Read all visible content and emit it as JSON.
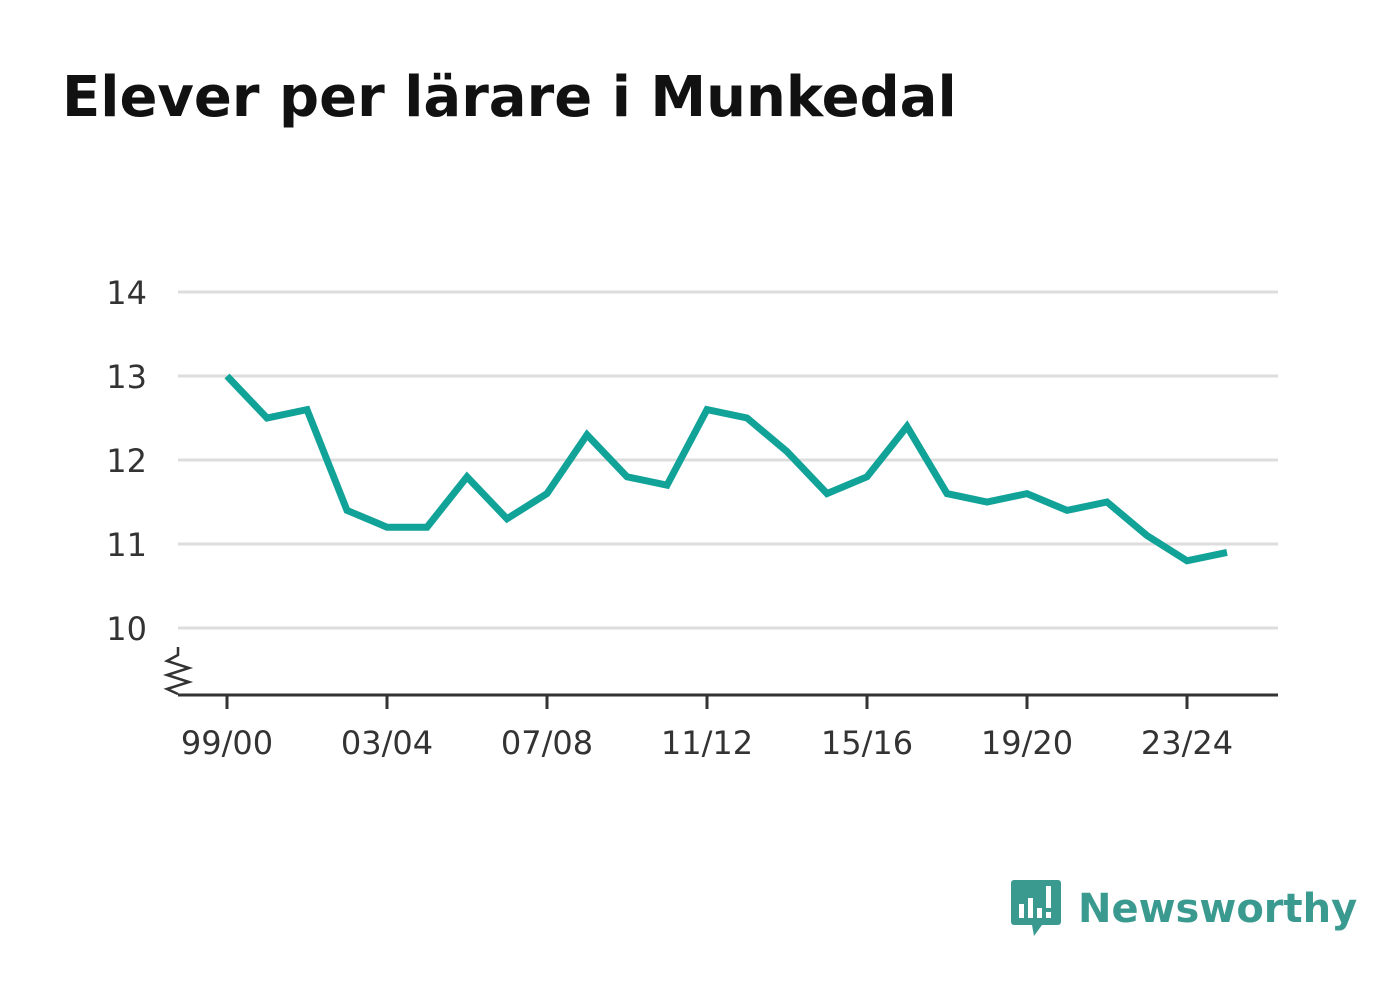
{
  "title": "Elever per lärare i Munkedal",
  "brand": {
    "name": "Newsworthy",
    "color": "#3a9a8f"
  },
  "colors": {
    "line": "#11a298",
    "grid": "#dddddd",
    "axis": "#333333"
  },
  "chart_data": {
    "type": "line",
    "title": "Elever per lärare i Munkedal",
    "xlabel": "",
    "ylabel": "",
    "ylim": [
      9.2,
      14
    ],
    "y_axis_break": true,
    "yticks": [
      10,
      11,
      12,
      13,
      14
    ],
    "grid": true,
    "x": [
      "99/00",
      "00/01",
      "01/02",
      "02/03",
      "03/04",
      "04/05",
      "05/06",
      "06/07",
      "07/08",
      "08/09",
      "09/10",
      "10/11",
      "11/12",
      "12/13",
      "13/14",
      "14/15",
      "15/16",
      "16/17",
      "17/18",
      "18/19",
      "19/20",
      "20/21",
      "21/22",
      "22/23",
      "23/24",
      "24/25"
    ],
    "xtick_labels": [
      "99/00",
      "03/04",
      "07/08",
      "11/12",
      "15/16",
      "19/20",
      "23/24"
    ],
    "series": [
      {
        "values": [
          13.0,
          12.5,
          12.6,
          11.4,
          11.2,
          11.2,
          11.8,
          11.3,
          11.6,
          12.3,
          11.8,
          11.7,
          12.6,
          12.5,
          12.1,
          11.6,
          11.8,
          12.4,
          11.6,
          11.5,
          11.6,
          11.4,
          11.5,
          11.1,
          10.8,
          10.9
        ]
      }
    ]
  }
}
